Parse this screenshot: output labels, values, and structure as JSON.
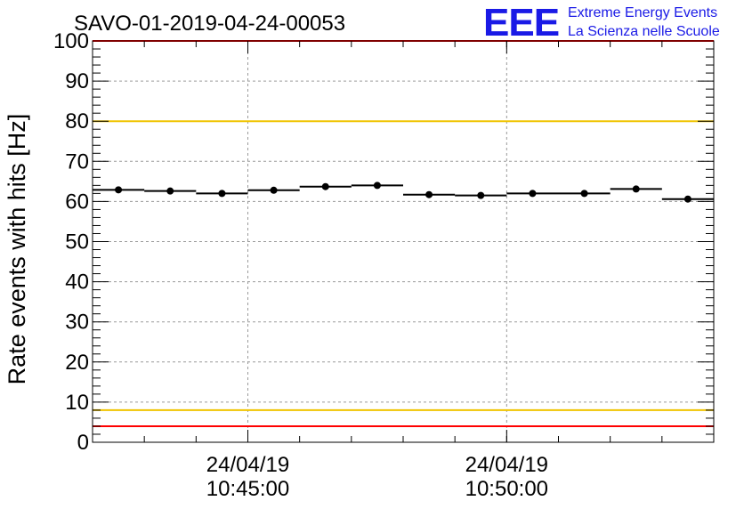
{
  "chart_data": {
    "type": "scatter",
    "title": "SAVO-01-2019-04-24-00053",
    "ylabel": "Rate events with hits [Hz]",
    "xlabel": "",
    "ylim": [
      0,
      100
    ],
    "yticks": [
      "0",
      "10",
      "20",
      "30",
      "40",
      "50",
      "60",
      "70",
      "80",
      "90",
      "100"
    ],
    "xticks": [
      {
        "date": "24/04/19",
        "time": "10:45:00"
      },
      {
        "date": "24/04/19",
        "time": "10:50:00"
      }
    ],
    "grid": true,
    "series": [
      {
        "x": [
          "10:42:30",
          "10:43:30",
          "10:44:30",
          "10:45:30",
          "10:46:30",
          "10:47:30",
          "10:48:30",
          "10:49:30",
          "10:50:30",
          "10:51:30",
          "10:52:30",
          "10:53:30"
        ],
        "y": [
          62.9,
          62.6,
          62.0,
          62.8,
          63.7,
          64.0,
          61.7,
          61.5,
          62.0,
          62.0,
          63.1,
          60.6
        ]
      }
    ],
    "reference_lines": [
      {
        "y": 100,
        "color": "#ff0000"
      },
      {
        "y": 80,
        "color": "#f0c400"
      },
      {
        "y": 8,
        "color": "#f0c400"
      },
      {
        "y": 4,
        "color": "#ff0000"
      }
    ]
  },
  "logo": {
    "mark": "EEE",
    "line1": "Extreme Energy Events",
    "line2": "La Scienza nelle Scuole",
    "color": "#1a1ae6"
  }
}
